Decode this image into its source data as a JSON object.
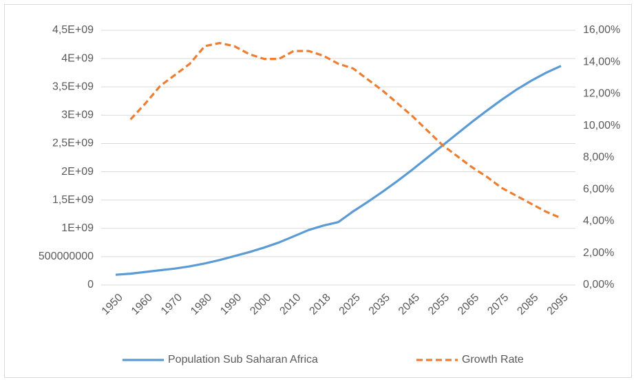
{
  "chart_data": {
    "type": "line",
    "categories": [
      "1950",
      null,
      "1960",
      null,
      "1970",
      null,
      "1980",
      null,
      "1990",
      null,
      "2000",
      null,
      "2010",
      null,
      "2018",
      null,
      "2025",
      null,
      "2035",
      null,
      "2045",
      null,
      "2055",
      null,
      "2065",
      null,
      "2075",
      null,
      "2085",
      null,
      "2095"
    ],
    "series": [
      {
        "name": "Population Sub Saharan Africa",
        "color": "#5b9bd5",
        "axis": "y",
        "values": [
          180000000,
          200000000,
          230000000,
          260000000,
          290000000,
          330000000,
          380000000,
          440000000,
          510000000,
          580000000,
          660000000,
          750000000,
          860000000,
          970000000,
          1050000000,
          1110000000,
          1300000000,
          1470000000,
          1650000000,
          1840000000,
          2040000000,
          2250000000,
          2460000000,
          2670000000,
          2880000000,
          3080000000,
          3270000000,
          3450000000,
          3610000000,
          3750000000,
          3870000000
        ]
      },
      {
        "name": "Growth Rate",
        "color": "#ed7d31",
        "axis": "y2",
        "dash": true,
        "values": [
          null,
          10.4,
          11.4,
          12.5,
          13.2,
          13.9,
          15.0,
          15.2,
          15.0,
          14.5,
          14.2,
          14.2,
          14.7,
          14.7,
          14.4,
          13.9,
          13.6,
          12.9,
          12.2,
          11.4,
          10.6,
          9.7,
          8.8,
          8.1,
          7.4,
          6.8,
          6.1,
          5.6,
          5.1,
          4.6,
          4.2
        ]
      }
    ],
    "ylim": [
      0,
      4500000000
    ],
    "yticks": [
      0,
      500000000,
      {
        "value": 1000000000,
        "label": "1E+09"
      },
      {
        "value": 1500000000,
        "label": "1,5E+09"
      },
      {
        "value": 2000000000,
        "label": "2E+09"
      },
      {
        "value": 2500000000,
        "label": "2,5E+09"
      },
      {
        "value": 3000000000,
        "label": "3E+09"
      },
      {
        "value": 3500000000,
        "label": "3,5E+09"
      },
      {
        "value": 4000000000,
        "label": "4E+09"
      },
      {
        "value": 4500000000,
        "label": "4,5E+09"
      }
    ],
    "y2lim": [
      0,
      16
    ],
    "y2ticks": [
      {
        "value": 0,
        "label": "0,00%"
      },
      {
        "value": 2,
        "label": "2,00%"
      },
      {
        "value": 4,
        "label": "4,00%"
      },
      {
        "value": 6,
        "label": "6,00%"
      },
      {
        "value": 8,
        "label": "8,00%"
      },
      {
        "value": 10,
        "label": "10,00%"
      },
      {
        "value": 12,
        "label": "12,00%"
      },
      {
        "value": 14,
        "label": "14,00%"
      },
      {
        "value": 16,
        "label": "16,00%"
      }
    ],
    "grid": true,
    "legend": "bottom"
  }
}
